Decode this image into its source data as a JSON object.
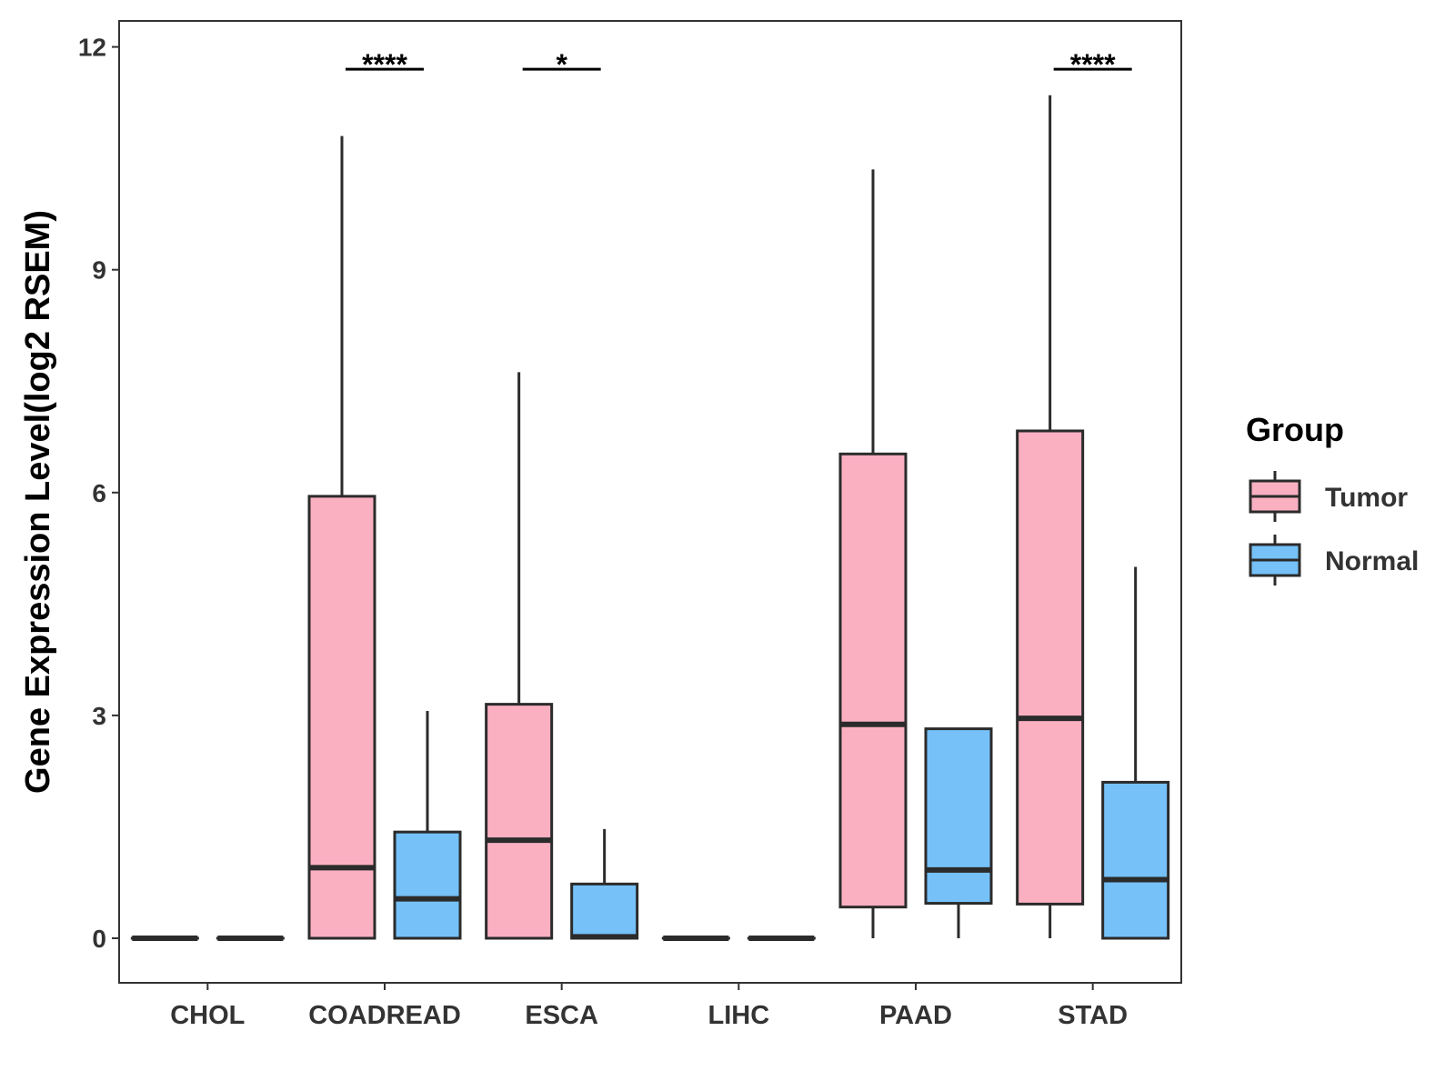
{
  "chart_data": {
    "type": "boxplot",
    "title": "",
    "xlabel": "",
    "ylabel": "Gene Expression Level(log2 RSEM)",
    "ylim": [
      -0.6,
      12.35
    ],
    "yticks": [
      0,
      3,
      6,
      9,
      12
    ],
    "ytick_labels": [
      "0",
      "3",
      "6",
      "9",
      "12"
    ],
    "categories": [
      "CHOL",
      "COADREAD",
      "ESCA",
      "LIHC",
      "PAAD",
      "STAD"
    ],
    "legend": {
      "title": "Group",
      "placement": "right",
      "entries": [
        "Tumor",
        "Normal"
      ]
    },
    "colors": {
      "Tumor": "#FBB0C2",
      "Normal": "#75C1F8",
      "outline": "#2b2b2b"
    },
    "series": [
      {
        "name": "Tumor",
        "boxes": [
          {
            "category": "CHOL",
            "min": 0,
            "q1": 0,
            "median": 0,
            "q3": 0,
            "max": 0
          },
          {
            "category": "COADREAD",
            "min": 0,
            "q1": 0,
            "median": 0.95,
            "q3": 5.95,
            "max": 10.8
          },
          {
            "category": "ESCA",
            "min": 0,
            "q1": 0,
            "median": 1.32,
            "q3": 3.15,
            "max": 7.62
          },
          {
            "category": "LIHC",
            "min": 0,
            "q1": 0,
            "median": 0,
            "q3": 0,
            "max": 0
          },
          {
            "category": "PAAD",
            "min": 0,
            "q1": 0.42,
            "median": 2.88,
            "q3": 6.52,
            "max": 10.35
          },
          {
            "category": "STAD",
            "min": 0,
            "q1": 0.46,
            "median": 2.96,
            "q3": 6.83,
            "max": 11.35
          }
        ]
      },
      {
        "name": "Normal",
        "boxes": [
          {
            "category": "CHOL",
            "min": 0,
            "q1": 0,
            "median": 0,
            "q3": 0,
            "max": 0
          },
          {
            "category": "COADREAD",
            "min": 0,
            "q1": 0,
            "median": 0.53,
            "q3": 1.43,
            "max": 3.06
          },
          {
            "category": "ESCA",
            "min": 0,
            "q1": 0,
            "median": 0.02,
            "q3": 0.73,
            "max": 1.47
          },
          {
            "category": "LIHC",
            "min": 0,
            "q1": 0,
            "median": 0,
            "q3": 0,
            "max": 0
          },
          {
            "category": "PAAD",
            "min": 0,
            "q1": 0.47,
            "median": 0.92,
            "q3": 2.82,
            "max": 2.82
          },
          {
            "category": "STAD",
            "min": 0,
            "q1": 0,
            "median": 0.79,
            "q3": 2.1,
            "max": 5.0
          }
        ]
      }
    ],
    "annotations": [
      {
        "category": "COADREAD",
        "label": "****",
        "y": 11.7
      },
      {
        "category": "ESCA",
        "label": "*",
        "y": 11.7
      },
      {
        "category": "STAD",
        "label": "****",
        "y": 11.7
      }
    ]
  }
}
